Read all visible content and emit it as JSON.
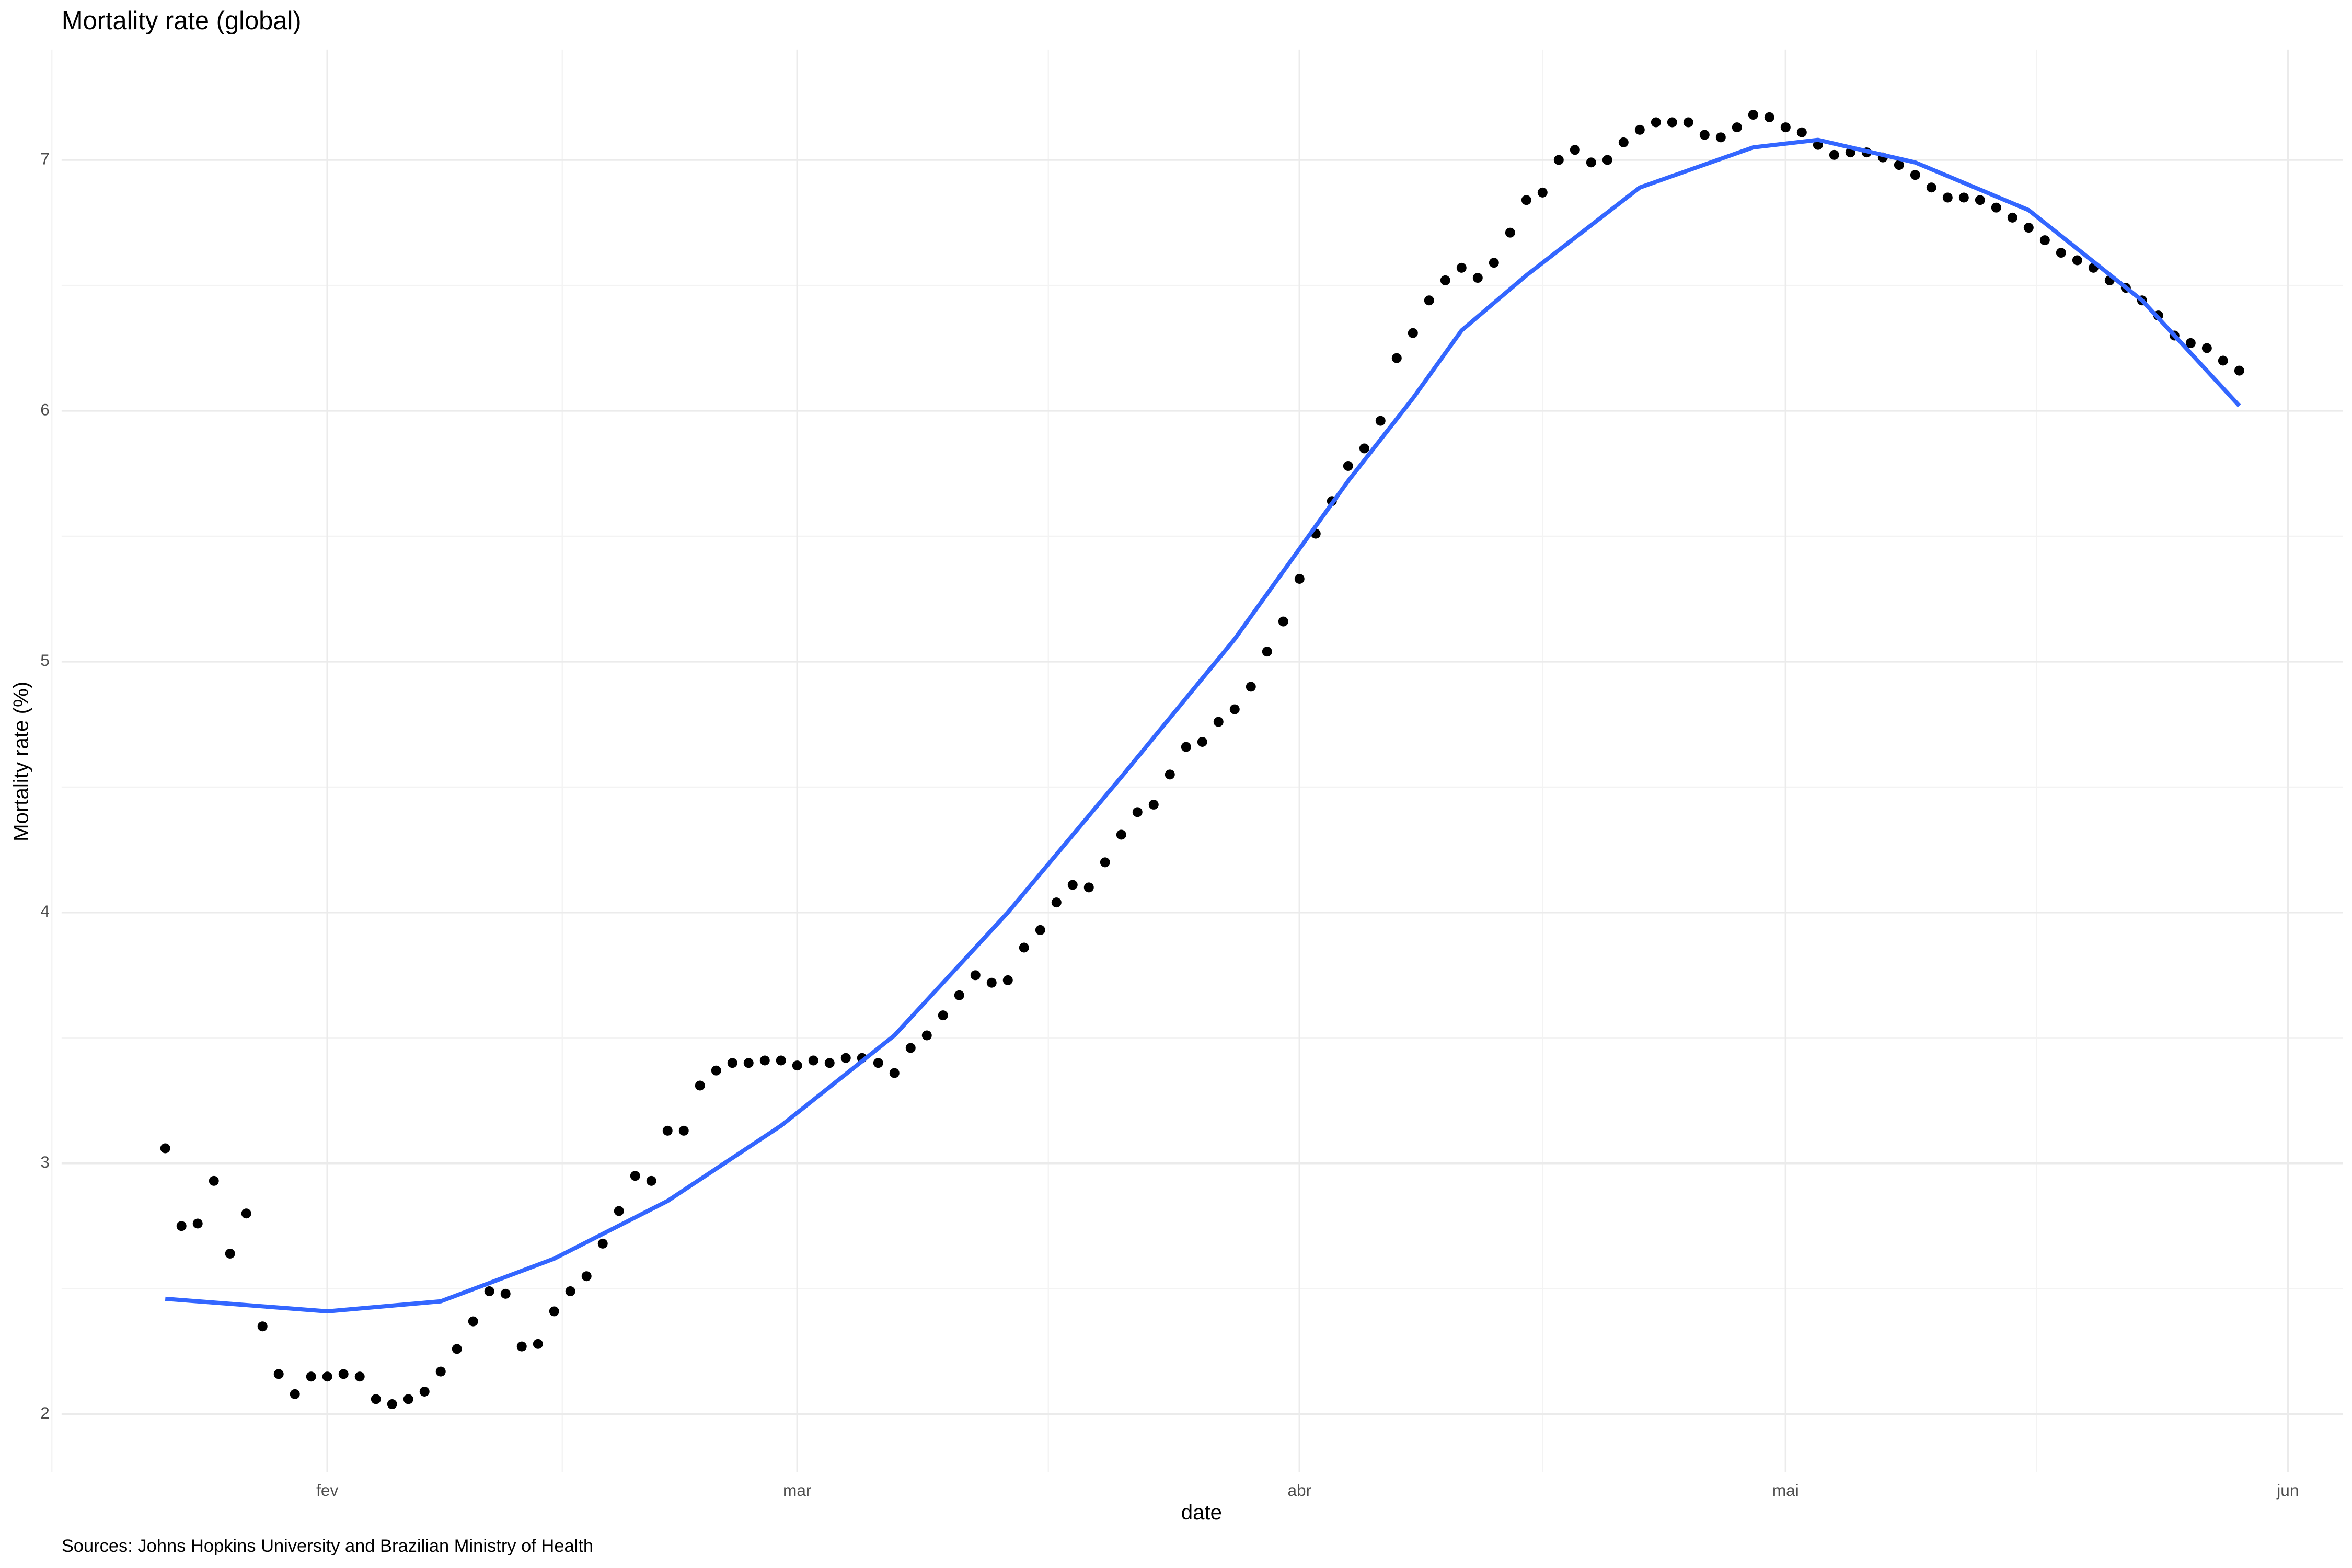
{
  "chart_data": {
    "type": "scatter",
    "title": "Mortality rate (global)",
    "xlabel": "date",
    "ylabel": "Mortality rate (%)",
    "caption": "Sources: Johns Hopkins University and Brazilian Ministry of Health",
    "x": [
      22,
      23,
      24,
      25,
      26,
      27,
      28,
      29,
      30,
      31,
      32,
      33,
      34,
      35,
      36,
      37,
      38,
      39,
      40,
      41,
      42,
      43,
      44,
      45,
      46,
      47,
      48,
      49,
      50,
      51,
      52,
      53,
      54,
      55,
      56,
      57,
      58,
      59,
      60,
      61,
      62,
      63,
      64,
      65,
      66,
      67,
      68,
      69,
      70,
      71,
      72,
      73,
      74,
      75,
      76,
      77,
      78,
      79,
      80,
      81,
      82,
      83,
      84,
      85,
      86,
      87,
      88,
      89,
      90,
      91,
      92,
      93,
      94,
      95,
      96,
      97,
      98,
      99,
      100,
      101,
      102,
      103,
      104,
      105,
      106,
      107,
      108,
      109,
      110,
      111,
      112,
      113,
      114,
      115,
      116,
      117,
      118,
      119,
      120,
      121,
      122,
      123,
      124,
      125,
      126,
      127,
      128,
      129,
      130,
      131,
      132,
      133,
      134,
      135,
      136,
      137,
      138,
      139,
      140,
      141,
      142,
      143,
      144,
      145,
      146,
      147,
      148,
      149,
      150
    ],
    "values": [
      3.06,
      2.75,
      2.76,
      2.93,
      2.64,
      2.8,
      2.35,
      2.16,
      2.08,
      2.15,
      2.15,
      2.16,
      2.15,
      2.06,
      2.04,
      2.06,
      2.09,
      2.17,
      2.26,
      2.37,
      2.49,
      2.48,
      2.27,
      2.28,
      2.41,
      2.49,
      2.55,
      2.68,
      2.81,
      2.95,
      2.93,
      3.13,
      3.13,
      3.31,
      3.37,
      3.4,
      3.4,
      3.41,
      3.41,
      3.39,
      3.41,
      3.4,
      3.42,
      3.42,
      3.4,
      3.36,
      3.46,
      3.51,
      3.59,
      3.67,
      3.75,
      3.72,
      3.73,
      3.86,
      3.93,
      4.04,
      4.11,
      4.1,
      4.2,
      4.31,
      4.4,
      4.43,
      4.55,
      4.66,
      4.68,
      4.76,
      4.81,
      4.9,
      5.04,
      5.16,
      5.33,
      5.51,
      5.64,
      5.78,
      5.85,
      5.96,
      6.21,
      6.31,
      6.44,
      6.52,
      6.57,
      6.53,
      6.59,
      6.71,
      6.84,
      6.87,
      7.0,
      7.04,
      6.99,
      7.0,
      7.07,
      7.12,
      7.15,
      7.15,
      7.15,
      7.1,
      7.09,
      7.13,
      7.18,
      7.17,
      7.13,
      7.11,
      7.06,
      7.02,
      7.03,
      7.03,
      7.01,
      6.98,
      6.94,
      6.89,
      6.85,
      6.85,
      6.84,
      6.81,
      6.77,
      6.73,
      6.68,
      6.63,
      6.6,
      6.57,
      6.52,
      6.49,
      6.44,
      6.38,
      6.3,
      6.27,
      6.25,
      6.2,
      6.16
    ],
    "color": "#000000",
    "trend": {
      "x": [
        22,
        32,
        39,
        46,
        53,
        60,
        67,
        74,
        81,
        88,
        92,
        95,
        99,
        102,
        106,
        113,
        120,
        124,
        130,
        137,
        144,
        150
      ],
      "values": [
        2.46,
        2.41,
        2.45,
        2.62,
        2.85,
        3.15,
        3.51,
        4.0,
        4.54,
        5.09,
        5.45,
        5.72,
        6.05,
        6.32,
        6.54,
        6.89,
        7.05,
        7.08,
        6.99,
        6.8,
        6.44,
        6.02
      ],
      "color": "#3366ff"
    },
    "xlim": [
      15.6,
      156.4
    ],
    "ylim": [
      1.77,
      7.44
    ],
    "xticks": [
      {
        "value": 32,
        "label": "fev"
      },
      {
        "value": 61,
        "label": "mar"
      },
      {
        "value": 92,
        "label": "abr"
      },
      {
        "value": 122,
        "label": "mai"
      },
      {
        "value": 153,
        "label": "jun"
      }
    ],
    "xminor": [
      15,
      46.5,
      76.5,
      107,
      137.5
    ],
    "yticks": [
      2,
      3,
      4,
      5,
      6,
      7
    ],
    "yminor": [
      2.5,
      3.5,
      4.5,
      5.5,
      6.5
    ],
    "grid": true
  }
}
